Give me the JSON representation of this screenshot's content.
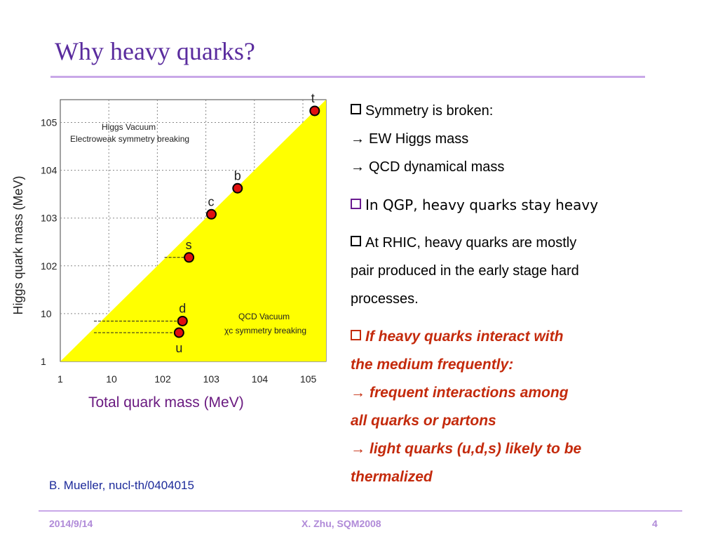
{
  "slide": {
    "title": "Why heavy quarks?",
    "x_caption": "Total quark mass (MeV)",
    "citation": "B. Mueller, nucl-th/0404015"
  },
  "bullets": {
    "b1": "Symmetry is broken:",
    "b1a": "EW Higgs mass",
    "b1b": "QCD dynamical mass",
    "b2": "In QGP, heavy quarks stay heavy",
    "b3_line1": "At RHIC, heavy quarks are mostly",
    "b3_line2": "pair produced in the early stage hard",
    "b3_line3": "processes.",
    "b4_line1": "If heavy quarks interact with",
    "b4_line2": "the medium frequently:",
    "b4_line3": "frequent interactions among",
    "b4_line4": "all quarks or partons",
    "b4_line5": "light quarks (u,d,s) likely to be",
    "b4_line6": "thermalized"
  },
  "footer": {
    "date": "2014/9/14",
    "center": "X. Zhu, SQM2008",
    "page": "4"
  },
  "colors": {
    "title": "#5a2c9e",
    "fill_yellow": "#ffff00",
    "point_fill": "#e01010",
    "emphasis_red": "#c42a0c"
  },
  "chart_data": {
    "type": "scatter",
    "x_scale": "log",
    "y_scale": "log",
    "xlim": [
      1,
      300000
    ],
    "ylim": [
      1,
      300000
    ],
    "ylabel": "Higgs quark mass (MeV)",
    "x_ticks": [
      "1",
      "10",
      "10^2",
      "10^3",
      "10^4",
      "10^5"
    ],
    "y_ticks": [
      "1",
      "10",
      "10^2",
      "10^3",
      "10^4",
      "10^5"
    ],
    "grid": true,
    "region_labels": {
      "upper_title": "Higgs Vacuum",
      "upper_sub": "Electroweak symmetry breaking",
      "lower_title": "QCD Vacuum",
      "lower_sub": "χc symmetry breaking"
    },
    "points": [
      {
        "label": "t",
        "x": 175000,
        "y": 175000
      },
      {
        "label": "b",
        "x": 4500,
        "y": 4200
      },
      {
        "label": "c",
        "x": 1300,
        "y": 1200
      },
      {
        "label": "s",
        "x": 450,
        "y": 150
      },
      {
        "label": "d",
        "x": 330,
        "y": 7
      },
      {
        "label": "u",
        "x": 280,
        "y": 4
      }
    ]
  }
}
